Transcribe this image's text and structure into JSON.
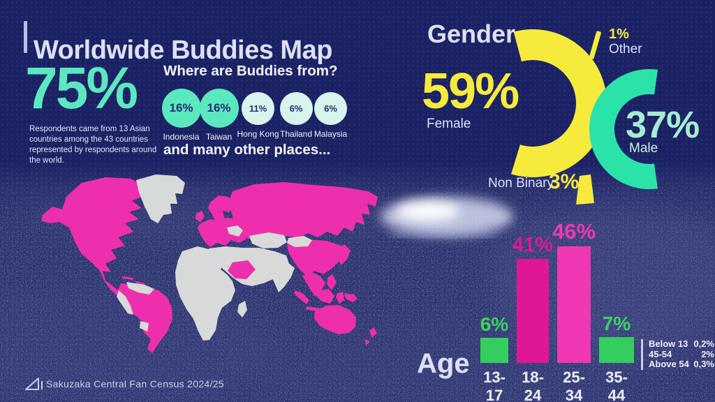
{
  "colors": {
    "background": "#1B2263",
    "dot_grid": "#39418C",
    "heading": "#DDE1F6",
    "mint": "#5BE8BF",
    "mint_pale": "#D9F4EC",
    "mint_text": "#A5EDD1",
    "yellow": "#F6EB3D",
    "teal": "#2BE3A9",
    "pink_deep": "#DF1796",
    "pink_bright": "#F137B4",
    "map_pink": "#EE2FAD",
    "map_gray": "#D7DAD9",
    "green": "#33CE5D",
    "navy_text": "#232B6E"
  },
  "header": {
    "title": "Worldwide Buddies Map"
  },
  "origin": {
    "stat": "75%",
    "description": "Respondents came from 13 Asian countries among the 43 countries represented by respondents around the world.",
    "question": "Where are Buddies from?",
    "countries": [
      {
        "label": "Indonesia",
        "value": "16%"
      },
      {
        "label": "Taiwan",
        "value": "16%"
      },
      {
        "label": "Hong Kong",
        "value": "11%"
      },
      {
        "label": "Thailand",
        "value": "6%"
      },
      {
        "label": "Malaysia",
        "value": "6%"
      }
    ],
    "more_text": "and many other places..."
  },
  "gender": {
    "title": "Gender",
    "female": {
      "label": "Female",
      "value": "59%"
    },
    "male": {
      "label": "Male",
      "value": "37%"
    },
    "non_binary": {
      "label": "Non Binary",
      "value": "3%"
    },
    "other": {
      "label": "Other",
      "value": "1%"
    }
  },
  "age": {
    "title": "Age",
    "bars": [
      {
        "label": "13-17",
        "value": "6%"
      },
      {
        "label": "18-24",
        "value": "41%"
      },
      {
        "label": "25-34",
        "value": "46%"
      },
      {
        "label": "35-44",
        "value": "7%"
      }
    ],
    "legend": [
      {
        "label": "Below 13",
        "value": "0,2%"
      },
      {
        "label": "45-54",
        "value": "2%"
      },
      {
        "label": "Above 54",
        "value": "0,3%"
      }
    ]
  },
  "footer": {
    "text": "Sakuzaka Central Fan Census 2024/25"
  },
  "chart_data": [
    {
      "type": "bar",
      "title": "Where are Buddies from?",
      "categories": [
        "Indonesia",
        "Taiwan",
        "Hong Kong",
        "Thailand",
        "Malaysia"
      ],
      "values": [
        16,
        16,
        11,
        6,
        6
      ],
      "unit": "%",
      "note": "shown as sized circles; values are share of respondents"
    },
    {
      "type": "pie",
      "title": "Gender",
      "labels": [
        "Female",
        "Male",
        "Non Binary",
        "Other"
      ],
      "values": [
        59,
        37,
        3,
        1
      ],
      "unit": "%",
      "colors": {
        "Female": "#F6EB3D",
        "Male": "#2BE3A9",
        "Non Binary": "#F6EB3D",
        "Other": "#F6EB3D"
      }
    },
    {
      "type": "bar",
      "title": "Age",
      "categories": [
        "13-17",
        "18-24",
        "25-34",
        "35-44"
      ],
      "values": [
        6,
        41,
        46,
        7
      ],
      "unit": "%",
      "ylim": [
        0,
        50
      ],
      "annotations": [
        {
          "label": "Below 13",
          "value": 0.2
        },
        {
          "label": "45-54",
          "value": 2
        },
        {
          "label": "Above 54",
          "value": 0.3
        }
      ]
    }
  ]
}
